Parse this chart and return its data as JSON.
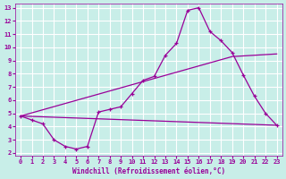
{
  "xlabel": "Windchill (Refroidissement éolien,°C)",
  "bg_color": "#c8eee8",
  "grid_color": "#ffffff",
  "line_color": "#990099",
  "xlim": [
    -0.5,
    23.5
  ],
  "ylim": [
    1.8,
    13.3
  ],
  "xticks": [
    0,
    1,
    2,
    3,
    4,
    5,
    6,
    7,
    8,
    9,
    10,
    11,
    12,
    13,
    14,
    15,
    16,
    17,
    18,
    19,
    20,
    21,
    22,
    23
  ],
  "yticks": [
    2,
    3,
    4,
    5,
    6,
    7,
    8,
    9,
    10,
    11,
    12,
    13
  ],
  "line1_x": [
    0,
    1,
    2,
    3,
    4,
    5,
    6,
    7,
    8,
    9,
    10,
    11,
    12,
    13,
    14,
    15,
    16,
    17,
    18,
    19,
    20,
    21,
    22,
    23
  ],
  "line1_y": [
    4.8,
    4.5,
    4.2,
    3.0,
    2.5,
    2.3,
    2.5,
    5.1,
    5.3,
    5.5,
    6.5,
    7.5,
    7.8,
    9.4,
    10.3,
    12.8,
    13.0,
    11.2,
    10.5,
    9.6,
    7.9,
    6.3,
    5.0,
    4.1
  ],
  "line2_x": [
    0,
    19,
    23
  ],
  "line2_y": [
    4.8,
    9.3,
    9.5
  ],
  "line3_x": [
    0,
    23
  ],
  "line3_y": [
    4.8,
    4.1
  ]
}
